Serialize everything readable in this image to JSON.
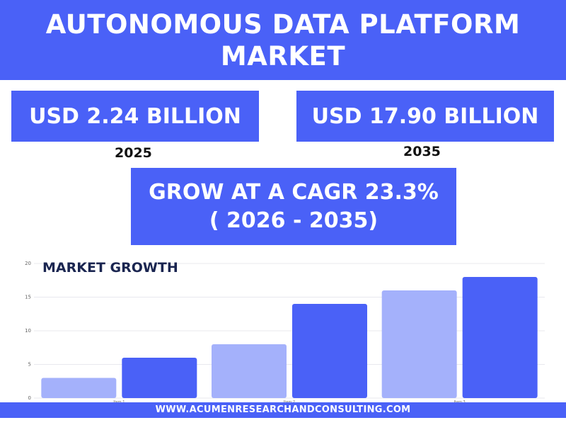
{
  "header": {
    "line1": "AUTONOMOUS DATA PLATFORM",
    "line2": "MARKET"
  },
  "value_2025": {
    "amount": "USD 2.24 BILLION",
    "year": "2025"
  },
  "value_2035": {
    "amount": "USD 17.90 BILLION",
    "year": "2035"
  },
  "cagr": {
    "line1": "GROW AT A CAGR 23.3%",
    "line2": "( 2026 - 2035)"
  },
  "footer": {
    "url": "WWW.ACUMENRESEARCHANDCONSULTING.COM"
  },
  "colors": {
    "primary": "#4a61f7",
    "light_bar": "#a4b1fb",
    "dark_bar": "#4a61f7"
  },
  "chart_data": {
    "type": "bar",
    "title": "MARKET GROWTH",
    "categories": [
      "Item 1",
      "Item 2",
      "Item 3"
    ],
    "series": [
      {
        "values": [
          3,
          8,
          16
        ]
      },
      {
        "values": [
          6,
          14,
          18
        ]
      }
    ],
    "ylim": [
      0,
      20
    ],
    "yticks": [
      "0",
      "5",
      "10",
      "15",
      "20"
    ],
    "grid": true
  }
}
